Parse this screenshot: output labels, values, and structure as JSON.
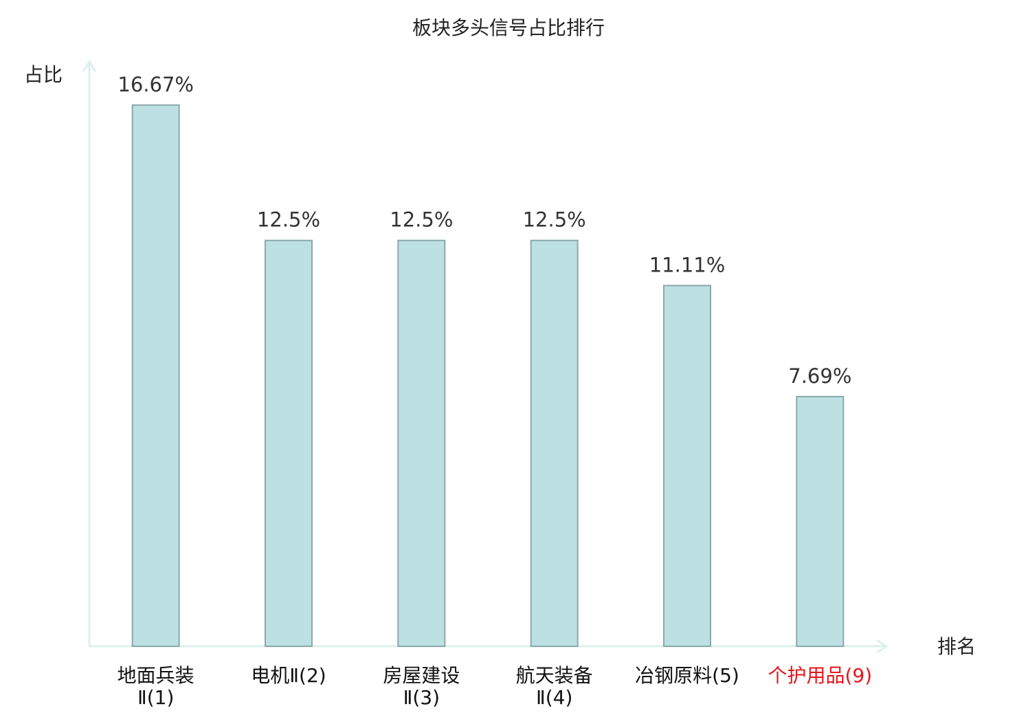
{
  "chart_data": {
    "type": "bar",
    "title": "板块多头信号占比排行",
    "y_label": "占比",
    "x_label": "排名",
    "categories": [
      [
        "地面兵装",
        "Ⅱ(1)"
      ],
      [
        "电机Ⅱ(2)"
      ],
      [
        "房屋建设",
        "Ⅱ(3)"
      ],
      [
        "航天装备",
        "Ⅱ(4)"
      ],
      [
        "冶钢原料(5)"
      ],
      [
        "个护用品(9)"
      ]
    ],
    "category_colors": [
      "#111111",
      "#111111",
      "#111111",
      "#111111",
      "#111111",
      "#e8141a"
    ],
    "values": [
      16.67,
      12.5,
      12.5,
      12.5,
      11.11,
      7.69
    ],
    "value_labels": [
      "16.67%",
      "12.5%",
      "12.5%",
      "12.5%",
      "11.11%",
      "7.69%"
    ],
    "color": "#bde0e3",
    "stroke": "#8aa8aa",
    "axis_color": "#dcf0ec",
    "ylim": [
      0,
      18
    ]
  }
}
